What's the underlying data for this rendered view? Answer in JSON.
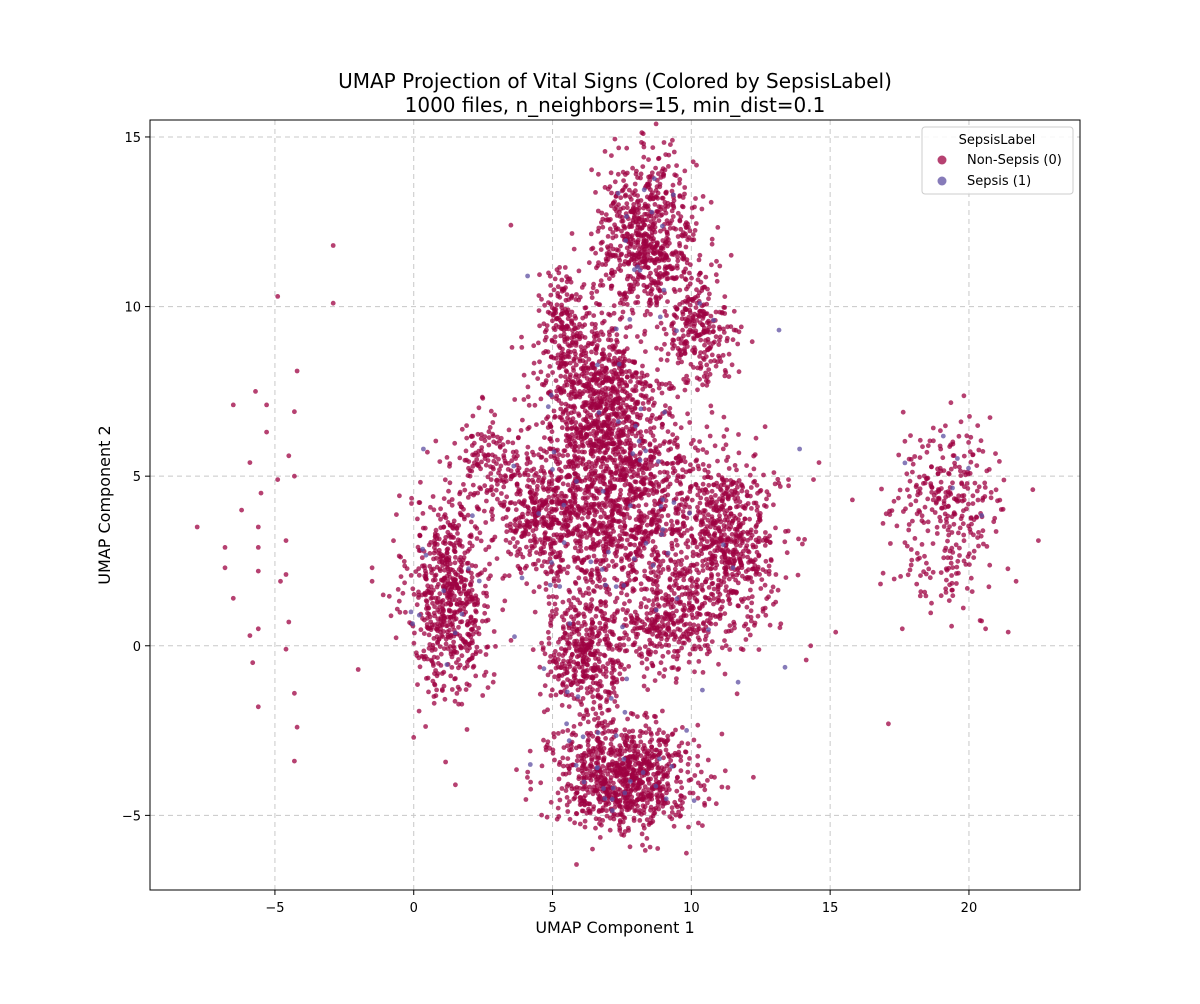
{
  "chart_data": {
    "type": "scatter",
    "title": "UMAP Projection of Vital Signs (Colored by SepsisLabel)",
    "subtitle": "1000 files, n_neighbors=15, min_dist=0.1",
    "xlabel": "UMAP Component 1",
    "ylabel": "UMAP Component 2",
    "xlim": [
      -9.5,
      24
    ],
    "ylim": [
      -7.2,
      15.5
    ],
    "xticks": [
      -5,
      0,
      5,
      10,
      15,
      20
    ],
    "yticks": [
      -5,
      0,
      5,
      10,
      15
    ],
    "grid": true,
    "legend": {
      "title": "SepsisLabel",
      "placement": "top-right"
    },
    "series": [
      {
        "name": "Non-Sepsis (0)",
        "color": "#9e0142",
        "clusters": [
          {
            "cx": 1.3,
            "cy": 1.5,
            "sx": 0.75,
            "sy": 1.5,
            "n": 650
          },
          {
            "cx": 8.4,
            "cy": 12.0,
            "sx": 0.9,
            "sy": 1.2,
            "n": 700
          },
          {
            "cx": 5.4,
            "cy": 9.5,
            "sx": 0.45,
            "sy": 0.8,
            "n": 180
          },
          {
            "cx": 6.6,
            "cy": 7.2,
            "sx": 1.0,
            "sy": 1.2,
            "n": 700
          },
          {
            "cx": 10.3,
            "cy": 9.3,
            "sx": 0.6,
            "sy": 0.8,
            "n": 250
          },
          {
            "cx": 4.7,
            "cy": 4.0,
            "sx": 0.9,
            "sy": 1.0,
            "n": 450
          },
          {
            "cx": 7.6,
            "cy": 4.2,
            "sx": 1.4,
            "sy": 1.6,
            "n": 1200
          },
          {
            "cx": 11.3,
            "cy": 3.0,
            "sx": 0.9,
            "sy": 1.3,
            "n": 650
          },
          {
            "cx": 9.3,
            "cy": 0.6,
            "sx": 0.8,
            "sy": 0.7,
            "n": 280
          },
          {
            "cx": 6.2,
            "cy": -0.3,
            "sx": 0.75,
            "sy": 0.9,
            "n": 420
          },
          {
            "cx": 7.5,
            "cy": -3.9,
            "sx": 1.3,
            "sy": 0.8,
            "n": 900
          },
          {
            "cx": 2.6,
            "cy": 5.5,
            "sx": 0.6,
            "sy": 0.6,
            "n": 120
          },
          {
            "cx": 19.2,
            "cy": 4.0,
            "sx": 1.0,
            "sy": 1.3,
            "n": 320
          }
        ],
        "points": [
          [
            -7.8,
            3.5
          ],
          [
            -6.8,
            2.9
          ],
          [
            -6.8,
            2.3
          ],
          [
            -6.5,
            7.1
          ],
          [
            -6.5,
            1.4
          ],
          [
            -6.2,
            4.0
          ],
          [
            -5.9,
            5.4
          ],
          [
            -5.9,
            0.3
          ],
          [
            -5.8,
            -0.5
          ],
          [
            -5.7,
            7.5
          ],
          [
            -5.6,
            3.5
          ],
          [
            -5.6,
            2.9
          ],
          [
            -5.6,
            2.2
          ],
          [
            -5.6,
            0.5
          ],
          [
            -5.6,
            -1.8
          ],
          [
            -5.5,
            4.5
          ],
          [
            -5.3,
            7.1
          ],
          [
            -5.3,
            6.3
          ],
          [
            -4.9,
            10.3
          ],
          [
            -4.9,
            4.9
          ],
          [
            -4.8,
            1.9
          ],
          [
            -4.6,
            3.1
          ],
          [
            -4.6,
            2.1
          ],
          [
            -4.6,
            -0.1
          ],
          [
            -4.5,
            5.6
          ],
          [
            -4.5,
            0.7
          ],
          [
            -4.3,
            6.9
          ],
          [
            -4.3,
            5.0
          ],
          [
            -4.3,
            -1.4
          ],
          [
            -4.2,
            8.1
          ],
          [
            -4.2,
            -2.4
          ],
          [
            -4.3,
            -3.4
          ],
          [
            -2.9,
            11.8
          ],
          [
            -2.9,
            10.1
          ],
          [
            -2.0,
            -0.7
          ],
          [
            -1.5,
            2.3
          ],
          [
            -1.5,
            1.9
          ],
          [
            -1.1,
            1.5
          ],
          [
            0.0,
            -2.7
          ],
          [
            1.5,
            -4.1
          ],
          [
            3.5,
            12.4
          ],
          [
            11.1,
            -2.6
          ],
          [
            10.4,
            -5.3
          ],
          [
            11.8,
            9.4
          ],
          [
            13.5,
            4.9
          ],
          [
            14.0,
            3.0
          ],
          [
            14.3,
            0.0
          ],
          [
            14.4,
            4.9
          ],
          [
            14.6,
            5.4
          ],
          [
            15.2,
            0.4
          ],
          [
            15.8,
            4.3
          ],
          [
            17.1,
            -2.3
          ],
          [
            17.6,
            0.5
          ],
          [
            21.7,
            1.9
          ],
          [
            22.3,
            4.6
          ],
          [
            22.5,
            3.1
          ],
          [
            20.6,
            0.5
          ]
        ]
      },
      {
        "name": "Sepsis (1)",
        "color": "#5e4fa2",
        "clusters": [
          {
            "cx": 7.4,
            "cy": 4.5,
            "sx": 2.2,
            "sy": 3.2,
            "n": 60
          },
          {
            "cx": 7.5,
            "cy": -3.6,
            "sx": 1.3,
            "sy": 0.7,
            "n": 22
          },
          {
            "cx": 8.3,
            "cy": 12.0,
            "sx": 0.9,
            "sy": 1.2,
            "n": 12
          },
          {
            "cx": 1.3,
            "cy": 1.5,
            "sx": 0.7,
            "sy": 1.4,
            "n": 10
          },
          {
            "cx": 19.2,
            "cy": 4.0,
            "sx": 1.0,
            "sy": 1.2,
            "n": 6
          }
        ],
        "points": [
          [
            13.9,
            5.8
          ],
          [
            0.35,
            5.8
          ],
          [
            -0.1,
            1.0
          ],
          [
            0.2,
            0.9
          ],
          [
            4.1,
            10.9
          ],
          [
            3.6,
            5.3
          ],
          [
            4.5,
            3.9
          ],
          [
            10.8,
            9.6
          ],
          [
            5.0,
            5.2
          ],
          [
            4.2,
            -3.5
          ],
          [
            5.6,
            -2.8
          ],
          [
            6.6,
            -3.6
          ],
          [
            11.5,
            2.3
          ],
          [
            3.9,
            2.0
          ],
          [
            7.4,
            8.3
          ]
        ]
      }
    ]
  }
}
